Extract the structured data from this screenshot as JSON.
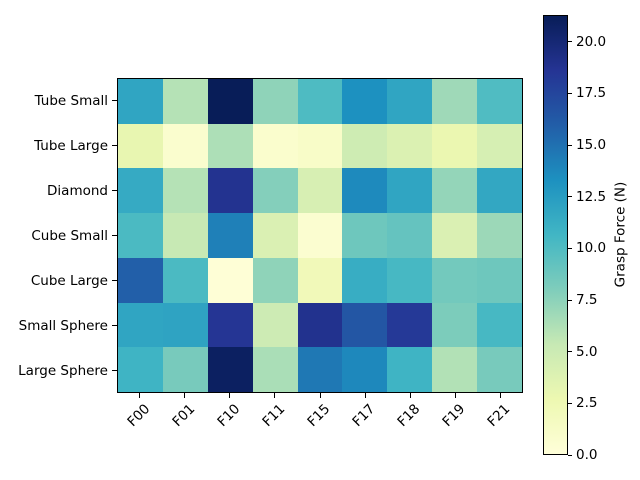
{
  "figure": {
    "background": "#ffffff",
    "spine_color": "#000000"
  },
  "chart_data": {
    "type": "heatmap",
    "title": "",
    "xlabel": "",
    "ylabel": "",
    "rows": [
      "Tube Small",
      "Tube Large",
      "Diamond",
      "Cube Small",
      "Cube Large",
      "Small Sphere",
      "Large Sphere"
    ],
    "columns": [
      "F00",
      "F01",
      "F10",
      "F11",
      "F15",
      "F17",
      "F18",
      "F19",
      "F21"
    ],
    "values": [
      [
        11.9,
        6.0,
        21.3,
        7.4,
        10.1,
        13.3,
        11.9,
        6.8,
        10.0
      ],
      [
        3.0,
        0.7,
        6.3,
        0.8,
        1.1,
        4.8,
        3.9,
        2.8,
        4.3
      ],
      [
        11.5,
        6.0,
        18.8,
        7.8,
        4.2,
        13.7,
        11.9,
        7.2,
        11.7
      ],
      [
        10.2,
        5.3,
        14.2,
        4.0,
        0.6,
        8.7,
        9.1,
        4.0,
        6.9
      ],
      [
        15.9,
        10.2,
        0.2,
        7.4,
        2.1,
        11.3,
        10.4,
        8.5,
        8.7
      ],
      [
        11.9,
        12.0,
        18.6,
        4.9,
        18.9,
        16.5,
        18.3,
        8.1,
        10.4
      ],
      [
        10.8,
        8.3,
        20.9,
        6.4,
        14.6,
        13.8,
        10.8,
        6.1,
        8.3
      ]
    ],
    "vmin": 0,
    "vmax": 21.3,
    "colormap": "YlGnBu",
    "colormap_stops": [
      "#ffffd9",
      "#edf8b1",
      "#c7e9b4",
      "#7fcdbb",
      "#41b6c4",
      "#1d91c0",
      "#225ea8",
      "#253494",
      "#081d58"
    ],
    "colorbar_label": "Grasp Force (N)",
    "colorbar_ticks": [
      {
        "value": 0,
        "label": "0.0"
      },
      {
        "value": 2.5,
        "label": "2.5"
      },
      {
        "value": 5,
        "label": "5.0"
      },
      {
        "value": 7.5,
        "label": "7.5"
      },
      {
        "value": 10,
        "label": "10.0"
      },
      {
        "value": 12.5,
        "label": "12.5"
      },
      {
        "value": 15,
        "label": "15.0"
      },
      {
        "value": 17.5,
        "label": "17.5"
      },
      {
        "value": 20,
        "label": "20.0"
      }
    ],
    "legend": "none",
    "grid": false
  }
}
